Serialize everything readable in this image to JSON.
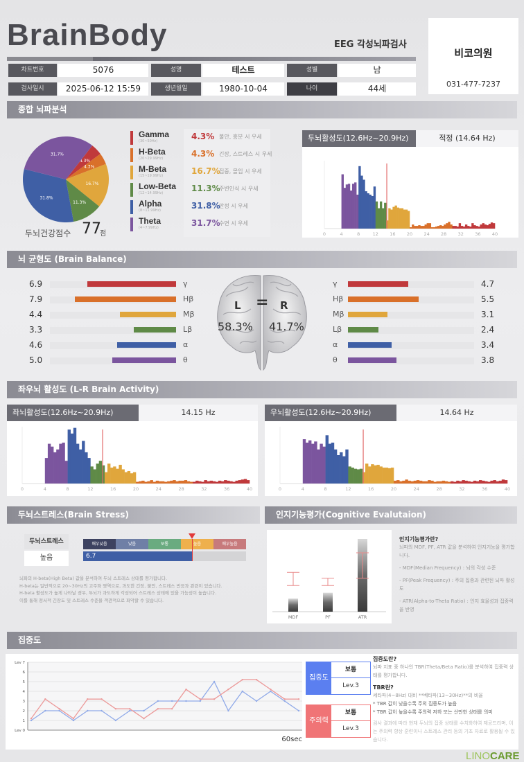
{
  "header": {
    "logo": "BrainBody",
    "subtitle": "EEG 각성뇌파검사",
    "clinic_name": "비코의원",
    "clinic_phone": "031-477-7237"
  },
  "patient": {
    "chart_no_label": "차트번호",
    "chart_no": "5076",
    "name_label": "성명",
    "name": "테스트",
    "sex_label": "성별",
    "sex": "남",
    "date_label": "검사일시",
    "date": "2025-06-12 15:59",
    "birth_label": "생년월일",
    "birth": "1980-10-04",
    "age_label": "나이",
    "age": "44세"
  },
  "sections": {
    "overview": "종합 뇌파분석",
    "balance": "뇌 균형도 (Brain Balance)",
    "lr": "좌우뇌 활성도 (L-R Brain Activity)",
    "stress": "두뇌스트레스(Brain Stress)",
    "cognitive": "인지기능평가(Cognitive Evalutaion)",
    "concentration": "집중도"
  },
  "overview": {
    "score_label": "두뇌건강점수",
    "score": "77",
    "score_unit": "점",
    "bands": [
      {
        "name": "Gamma",
        "range": "(30~50Hz)",
        "pct": "4.3%",
        "desc": "불안, 흥분 시 우세",
        "color": "#c0393b"
      },
      {
        "name": "H-Beta",
        "range": "(20~29.99Hz)",
        "pct": "4.3%",
        "desc": "긴장, 스트레스 시 우세",
        "color": "#d9702a"
      },
      {
        "name": "M-Beta",
        "range": "(15~19.99Hz)",
        "pct": "16.7%",
        "desc": "집중, 몰입 시 우세",
        "color": "#e0a63c"
      },
      {
        "name": "Low-Beta",
        "range": "(12~14.99Hz)",
        "pct": "11.3%",
        "desc": "주변인식 시 우세",
        "color": "#5f8a47"
      },
      {
        "name": "Alpha",
        "range": "(8~11.99Hz)",
        "pct": "31.8%",
        "desc": "안정 시 우세",
        "color": "#3f5fa5"
      },
      {
        "name": "Theta",
        "range": "(4~7.99Hz)",
        "pct": "31.7%",
        "desc": "수면 시 우세",
        "color": "#7b559e"
      }
    ],
    "activity_label": "두뇌활성도(12.6Hz~20.9Hz)",
    "activity_value": "적정 (14.64 Hz)"
  },
  "balance": {
    "L": "L",
    "eq": "=",
    "R": "R",
    "left_pct": "58.3%",
    "right_pct": "41.7%",
    "rows": [
      {
        "sym": "γ",
        "left": "6.9",
        "right": "4.7",
        "color": "#c0393b"
      },
      {
        "sym": "Hβ",
        "left": "7.9",
        "right": "5.5",
        "color": "#d9702a"
      },
      {
        "sym": "Mβ",
        "left": "4.4",
        "right": "3.1",
        "color": "#e0a63c"
      },
      {
        "sym": "Lβ",
        "left": "3.3",
        "right": "2.4",
        "color": "#5f8a47"
      },
      {
        "sym": "α",
        "left": "4.6",
        "right": "3.4",
        "color": "#3f5fa5"
      },
      {
        "sym": "θ",
        "left": "5.0",
        "right": "3.8",
        "color": "#7b559e"
      }
    ]
  },
  "lr": {
    "left_label": "좌뇌활성도(12.6Hz~20.9Hz)",
    "left_value": "14.15 Hz",
    "right_label": "우뇌활성도(12.6Hz~20.9Hz)",
    "right_value": "14.64 Hz"
  },
  "stress": {
    "label": "두뇌스트레스",
    "level": "높음",
    "value": "6.7",
    "scale": [
      "매우낮음",
      "낮음",
      "보통",
      "높음",
      "매우높음"
    ],
    "scale_colors": [
      "#3d4260",
      "#6f7fa6",
      "#6aab80",
      "#eeb04c",
      "#c77a7c"
    ],
    "desc": [
      "뇌파의 H-beta(High Beta) 값을 분석하여 두뇌 스트레스 상태를 평가합니다.",
      "H-beta는 일반적으로 20~30Hz의 고주파 영역으로, 과도한 긴장, 불안, 스트레스 반응과 관련이 있습니다.",
      "H-beta 활성도가 높게 나타날 경우, 두뇌가 과도하게 각성되어 스트레스 상태에 있을 가능성이 높습니다.",
      "이를 통해 정서적 긴장도 및 스트레스 수준을 객관적으로 파악할 수 있습니다."
    ]
  },
  "cognitive": {
    "title": "인지기능평가란?",
    "intro": "뇌파의 MDF, PF, ATR 값을 분석하여 인지기능을 평가합니다.",
    "items": [
      "- MDF(Median Frequency) : 뇌의 각성 수준",
      "- PF(Peak Frequency) : 주의 집중과 관련된 뇌파 활성도",
      "- ATR(Alpha-to-Theta Ratio) : 인지 효율성과 집중력을 반영"
    ]
  },
  "concentration": {
    "x_end_label": "60sec",
    "boxes": [
      {
        "name": "집중도",
        "status": "보통",
        "level": "Lev.3",
        "color": "#5b7ff0"
      },
      {
        "name": "주의력",
        "status": "보통",
        "level": "Lev.3",
        "color": "#f07476"
      }
    ],
    "title1": "집중도란?",
    "text1": "뇌파 지표 중 하나인 TBR(Theta/Beta Ratio)를 분석하여 집중력 상태를 평가합니다.",
    "title2": "TBR란?",
    "text2": "세타파(4~8Hz) 대비 **베타파(13~30Hz)**의 비율",
    "bullet1": "* TBR 값이 낮을수록 주의 집중도가 높음",
    "bullet2": "* TBR 값이 높을수록 주의력 저하 또는 산만한 상태를 의미",
    "note": "검사 결과에 따라 현재 두뇌의 집중 상태를 수치화하여 제공드리며, 이는 주의력 향상 훈련이나 스트레스 관리 등의 기초 자료로 활용될 수 있습니다."
  },
  "footer": {
    "brand1": "LINO",
    "brand2": "CARE"
  },
  "chart_data": [
    {
      "type": "pie",
      "title": "종합 뇌파분석",
      "labels": [
        "Gamma",
        "H-Beta",
        "M-Beta",
        "Low-Beta",
        "Alpha",
        "Theta"
      ],
      "values": [
        4.3,
        4.3,
        16.7,
        11.3,
        31.8,
        31.7
      ],
      "slice_labels": [
        "4.3%",
        "4.3%",
        "16.7%",
        "11.3%",
        "31.8%",
        "31.7%"
      ]
    },
    {
      "type": "bar",
      "id": "total",
      "xlabel": "Hz",
      "xlim": [
        0,
        40
      ],
      "xticks": [
        "0",
        "4",
        "8",
        "12",
        "16",
        "20",
        "24",
        "28",
        "32",
        "36",
        "40"
      ],
      "start_hz": 4,
      "bin_hz": 0.5,
      "marker_hz": 14.64,
      "values": [
        80,
        60,
        65,
        66,
        56,
        66,
        68,
        50,
        92,
        78,
        72,
        55,
        52,
        50,
        48,
        62,
        40,
        30,
        40,
        30,
        38,
        12,
        30,
        28,
        32,
        34,
        31,
        30,
        30,
        28,
        28,
        26,
        2,
        6,
        4,
        4,
        5,
        4,
        4,
        6,
        8,
        8,
        2,
        2,
        3,
        4,
        5,
        4,
        6,
        8,
        10,
        6,
        4,
        4,
        3,
        8,
        4,
        3,
        6,
        4,
        3,
        8,
        5,
        4,
        3,
        6,
        8,
        6,
        5,
        7,
        9,
        8
      ]
    },
    {
      "type": "bar",
      "id": "left",
      "xlim": [
        0,
        40
      ],
      "xticks": [
        "0",
        "4",
        "8",
        "12",
        "16",
        "20",
        "24",
        "28",
        "32",
        "36",
        "40"
      ],
      "start_hz": 4,
      "bin_hz": 0.5,
      "marker_hz": 14.15,
      "values": [
        45,
        70,
        65,
        55,
        60,
        70,
        72,
        40,
        95,
        88,
        98,
        70,
        60,
        75,
        55,
        45,
        30,
        25,
        35,
        40,
        32,
        20,
        35,
        28,
        30,
        26,
        33,
        25,
        20,
        22,
        18,
        20,
        3,
        4,
        5,
        3,
        4,
        6,
        3,
        5,
        4,
        4,
        3,
        4,
        5,
        6,
        4,
        5,
        5,
        6,
        4,
        3,
        3,
        5,
        4,
        3,
        6,
        4,
        5,
        4,
        3,
        5,
        4,
        6,
        5,
        4,
        3,
        5,
        6,
        7,
        8,
        6
      ]
    },
    {
      "type": "bar",
      "id": "right",
      "xlim": [
        0,
        40
      ],
      "xticks": [
        "0",
        "4",
        "8",
        "12",
        "16",
        "20",
        "24",
        "28",
        "32",
        "36",
        "40"
      ],
      "start_hz": 4,
      "bin_hz": 0.5,
      "marker_hz": 14.64,
      "values": [
        78,
        72,
        76,
        70,
        74,
        60,
        70,
        65,
        85,
        70,
        72,
        60,
        50,
        55,
        48,
        60,
        30,
        28,
        26,
        25,
        26,
        20,
        35,
        30,
        34,
        32,
        33,
        30,
        28,
        28,
        27,
        28,
        5,
        6,
        4,
        5,
        7,
        5,
        4,
        5,
        6,
        5,
        4,
        4,
        6,
        5,
        3,
        4,
        4,
        5,
        4,
        3,
        4,
        3,
        5,
        4,
        6,
        5,
        4,
        3,
        5,
        4,
        6,
        5,
        4,
        3,
        5,
        6,
        4,
        5,
        7,
        6
      ]
    },
    {
      "type": "bar",
      "id": "cognitive",
      "categories": [
        "MDF",
        "PF",
        "ATR"
      ],
      "values": [
        1.8,
        2.6,
        10
      ],
      "normal_ranges": [
        [
          3.6,
          5.4
        ],
        [
          3.6,
          4.6
        ],
        [
          4.6,
          8.1
        ]
      ],
      "ylim": [
        0,
        11
      ]
    },
    {
      "type": "line",
      "id": "concentration",
      "ylim": [
        0,
        7
      ],
      "yticks": [
        "Lev 0",
        "1",
        "2",
        "3",
        "4",
        "5",
        "6",
        "Lev 7"
      ],
      "x_end": "60sec",
      "series": [
        {
          "name": "집중도",
          "color": "#8fa9e8",
          "values": [
            1,
            2,
            2,
            1,
            2,
            2,
            1,
            2,
            2,
            3,
            3,
            3,
            3,
            5,
            2,
            4,
            3,
            4,
            3,
            2
          ]
        },
        {
          "name": "주의력",
          "color": "#ec9a9a",
          "values": [
            1.2,
            3.2,
            2.2,
            1.2,
            3.2,
            3.2,
            2.2,
            2.2,
            1.2,
            2.2,
            2.2,
            4.2,
            3.2,
            3.2,
            4.2,
            5.2,
            5.2,
            4.2,
            3.2,
            3.2
          ]
        }
      ]
    }
  ]
}
